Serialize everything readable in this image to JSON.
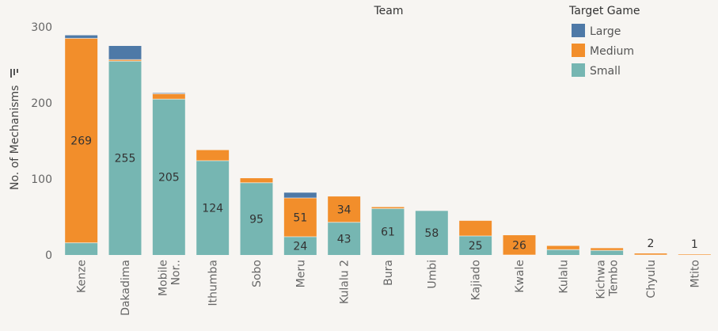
{
  "chart_data": {
    "type": "bar",
    "stacked": true,
    "header": "Team",
    "ylabel": "No. of Mechanisms",
    "ylim": [
      0,
      300
    ],
    "yticks": [
      0,
      100,
      200,
      300
    ],
    "categories": [
      "Kenze",
      "Dakadima",
      "Mobile Nor..",
      "Ithumba",
      "Sobo",
      "Meru",
      "Kulalu 2",
      "Bura",
      "Umbi",
      "Kajiado",
      "Kwale",
      "Kulalu",
      "Kichwa Tembo",
      "Chyulu",
      "Mtito"
    ],
    "series": [
      {
        "name": "Small",
        "color": "#76b6b2",
        "values": [
          16,
          255,
          205,
          124,
          95,
          24,
          43,
          61,
          58,
          25,
          0,
          7,
          6,
          0,
          0
        ]
      },
      {
        "name": "Medium",
        "color": "#f28e2b",
        "values": [
          269,
          2,
          7,
          14,
          6,
          51,
          34,
          2,
          0,
          20,
          26,
          5,
          3,
          2,
          1
        ]
      },
      {
        "name": "Large",
        "color": "#4e79a7",
        "values": [
          4,
          18,
          1,
          0,
          0,
          7,
          0,
          0,
          0,
          0,
          0,
          0,
          0,
          0,
          0
        ]
      }
    ],
    "data_labels": [
      {
        "category": "Kenze",
        "series": "Medium",
        "text": "269"
      },
      {
        "category": "Dakadima",
        "series": "Small",
        "text": "255"
      },
      {
        "category": "Mobile Nor..",
        "series": "Small",
        "text": "205"
      },
      {
        "category": "Ithumba",
        "series": "Small",
        "text": "124"
      },
      {
        "category": "Sobo",
        "series": "Small",
        "text": "95"
      },
      {
        "category": "Meru",
        "series": "Medium",
        "text": "51"
      },
      {
        "category": "Meru",
        "series": "Small",
        "text": "24"
      },
      {
        "category": "Kulalu 2",
        "series": "Medium",
        "text": "34"
      },
      {
        "category": "Kulalu 2",
        "series": "Small",
        "text": "43"
      },
      {
        "category": "Bura",
        "series": "Small",
        "text": "61"
      },
      {
        "category": "Umbi",
        "series": "Small",
        "text": "58"
      },
      {
        "category": "Kajiado",
        "series": "Small",
        "text": "25"
      },
      {
        "category": "Kwale",
        "series": "Medium",
        "text": "26"
      },
      {
        "category": "Chyulu",
        "series": "Medium",
        "text": "2",
        "above": true
      },
      {
        "category": "Mtito",
        "series": "Medium",
        "text": "1",
        "above": true
      }
    ],
    "legend": {
      "title": "Target Game",
      "position": "top-right",
      "entries": [
        "Large",
        "Medium",
        "Small"
      ]
    },
    "grid": false
  }
}
